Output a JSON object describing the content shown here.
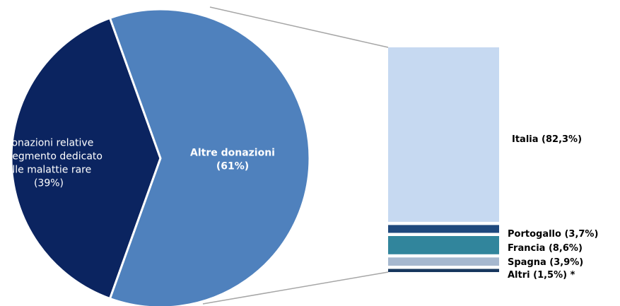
{
  "chart_data": {
    "type": "bar-of-pie",
    "pie": {
      "slices": [
        {
          "name_lines": [
            "Donazioni relative",
            "al segmento dedicato",
            "alle malattie rare",
            "(39%)"
          ],
          "value": 39,
          "color": "#0b2460",
          "label_color": "#ffffff",
          "label_bold": false
        },
        {
          "name_lines": [
            "Altre donazioni",
            "(61%)"
          ],
          "value": 61,
          "color": "#4f81bd",
          "label_color": "#ffffff",
          "label_bold": true
        }
      ]
    },
    "bar": {
      "segments": [
        {
          "label": "Italia (82,3%)",
          "value": 82.3,
          "color": "#c6d9f1"
        },
        {
          "label": "Portogallo (3,7%)",
          "value": 3.7,
          "color": "#1f497d"
        },
        {
          "label": "Francia (8,6%)",
          "value": 8.6,
          "color": "#31859c"
        },
        {
          "label": "Spagna (3,9%)",
          "value": 3.9,
          "color": "#a6b8cf"
        },
        {
          "label": "Altri (1,5%) *",
          "value": 1.5,
          "color": "#17375e"
        }
      ]
    },
    "connector_color": "#a6a6a6"
  }
}
